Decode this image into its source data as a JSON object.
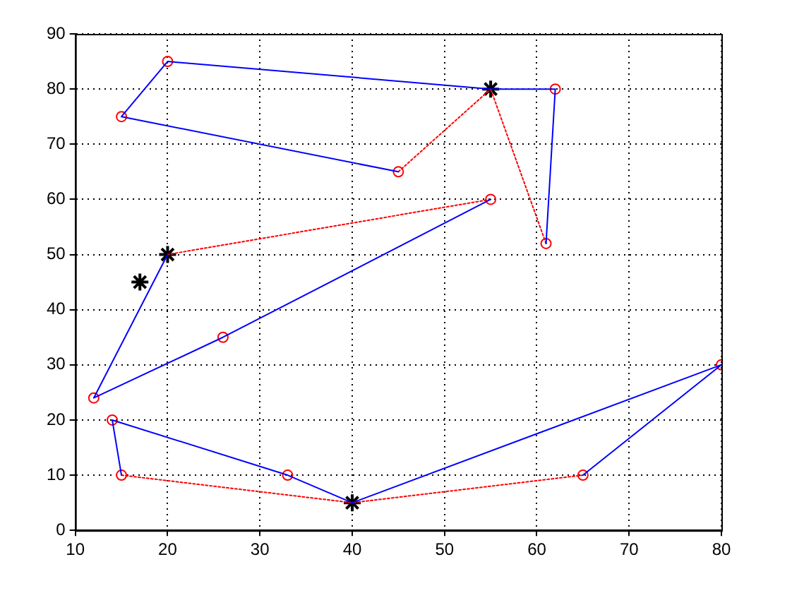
{
  "chart_data": {
    "type": "line",
    "xlim": [
      10,
      80
    ],
    "xticks": [
      10,
      20,
      30,
      40,
      50,
      60,
      70,
      80
    ],
    "ylim": [
      0,
      90
    ],
    "yticks": [
      0,
      10,
      20,
      30,
      40,
      50,
      60,
      70,
      80,
      90
    ],
    "grid": true,
    "legend": false,
    "series": [
      {
        "type": "line",
        "color": "#0000ff",
        "line_style": "solid",
        "marker": "none",
        "x": [
          55,
          20,
          15,
          45
        ],
        "values": [
          80,
          85,
          75,
          65
        ]
      },
      {
        "type": "line",
        "color": "#ff0000",
        "line_style": "dotted",
        "marker": "none",
        "x": [
          45,
          55
        ],
        "values": [
          65,
          80
        ]
      },
      {
        "type": "line",
        "color": "#0000ff",
        "line_style": "solid",
        "marker": "none",
        "x": [
          55,
          62,
          61
        ],
        "values": [
          80,
          80,
          52
        ]
      },
      {
        "type": "line",
        "color": "#ff0000",
        "line_style": "dotted",
        "marker": "none",
        "x": [
          61,
          55
        ],
        "values": [
          52,
          80
        ]
      },
      {
        "type": "line",
        "color": "#0000ff",
        "line_style": "solid",
        "marker": "none",
        "x": [
          20,
          12,
          26,
          55
        ],
        "values": [
          50,
          24,
          35,
          60
        ]
      },
      {
        "type": "line",
        "color": "#ff0000",
        "line_style": "dotted",
        "marker": "none",
        "x": [
          55,
          20
        ],
        "values": [
          60,
          50
        ]
      },
      {
        "type": "line",
        "color": "#0000ff",
        "line_style": "solid",
        "marker": "none",
        "x": [
          40,
          33,
          14,
          15
        ],
        "values": [
          5,
          10,
          20,
          10
        ]
      },
      {
        "type": "line",
        "color": "#ff0000",
        "line_style": "dotted",
        "marker": "none",
        "x": [
          15,
          40
        ],
        "values": [
          10,
          5
        ]
      },
      {
        "type": "line",
        "color": "#0000ff",
        "line_style": "solid",
        "marker": "none",
        "x": [
          40,
          80,
          65
        ],
        "values": [
          5,
          30,
          10
        ]
      },
      {
        "type": "line",
        "color": "#ff0000",
        "line_style": "dotted",
        "marker": "none",
        "x": [
          65,
          40
        ],
        "values": [
          10,
          5
        ]
      },
      {
        "type": "scatter",
        "color": "#ff0000",
        "marker": "circle",
        "x": [
          45,
          15,
          20,
          62,
          61,
          55,
          26,
          12,
          14,
          15,
          33,
          80,
          65
        ],
        "values": [
          65,
          75,
          85,
          80,
          52,
          60,
          35,
          24,
          20,
          10,
          10,
          30,
          10
        ]
      },
      {
        "type": "scatter",
        "color": "#000000",
        "marker": "cross",
        "x": [
          55,
          20,
          40,
          17
        ],
        "values": [
          80,
          50,
          5,
          45
        ]
      }
    ]
  }
}
